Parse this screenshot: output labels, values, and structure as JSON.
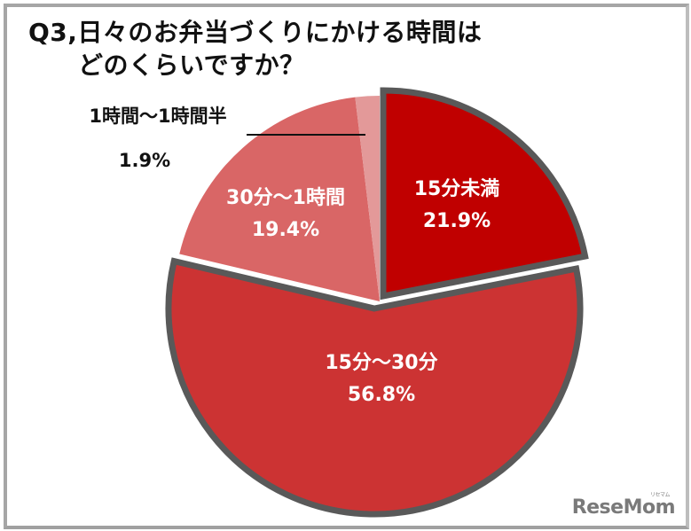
{
  "title": {
    "line1": "Q3,日々のお弁当づくりにかける時間は",
    "line2": "どのくらいですか？"
  },
  "chart_data": {
    "type": "pie",
    "title": "Q3,日々のお弁当づくりにかける時間はどのくらいですか？",
    "start_angle": "12 o'clock, clockwise",
    "slices": [
      {
        "label": "15分未満",
        "value": 21.9,
        "display": "21.9%",
        "color": "#c00000",
        "exploded": true
      },
      {
        "label": "15分～30分",
        "value": 56.8,
        "display": "56.8%",
        "color": "#cc3333",
        "exploded": true
      },
      {
        "label": "30分～1時間",
        "value": 19.4,
        "display": "19.4%",
        "color": "#d96666",
        "exploded": false
      },
      {
        "label": "1時間～1時間半",
        "value": 1.9,
        "display": "1.9%",
        "color": "#e39999",
        "exploded": false
      }
    ],
    "outline_color": "#595959",
    "legend": "none (labels on slices)"
  },
  "labels": {
    "s1": {
      "name": "15分未満",
      "pct": "21.9%"
    },
    "s2": {
      "name": "15分～30分",
      "pct": "56.8%"
    },
    "s3": {
      "name": "30分～1時間",
      "pct": "19.4%"
    },
    "s4": {
      "name": "1時間～1時間半",
      "pct": "1.9%"
    }
  },
  "watermark": {
    "brand": "ReseMom",
    "ruby": "リセマム"
  }
}
